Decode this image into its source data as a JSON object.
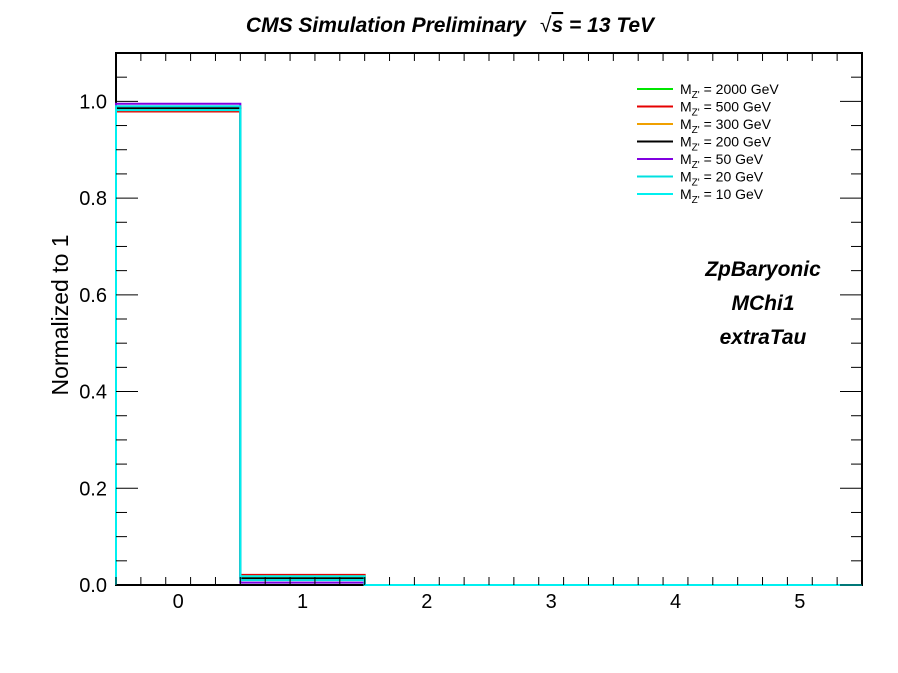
{
  "chart_data": {
    "type": "histogram-step",
    "title": "CMS Simulation Preliminary  √s = 13 TeV",
    "title_parts": {
      "prefix": "CMS Simulation Preliminary",
      "sqrt_symbol": "√",
      "s_var": "s",
      "suffix": " = 13 TeV"
    },
    "xlabel": "",
    "ylabel": "Normalized to 1",
    "xlim": [
      -0.5,
      5.5
    ],
    "ylim": [
      0,
      1.1
    ],
    "xticks": [
      0,
      1,
      2,
      3,
      4,
      5
    ],
    "xtick_labels": [
      "0",
      "1",
      "2",
      "3",
      "4",
      "5"
    ],
    "yticks": [
      0,
      0.2,
      0.4,
      0.6,
      0.8,
      1.0
    ],
    "ytick_labels": [
      "0.0",
      "0.2",
      "0.4",
      "0.6",
      "0.8",
      "1.0"
    ],
    "bin_edges": [
      -0.5,
      0.5,
      1.5,
      2.5,
      3.5,
      4.5,
      5.5
    ],
    "legend_position": "top-right",
    "series": [
      {
        "name_sub": "Z'",
        "name_rest": " = 2000 GeV",
        "color": "#00e600",
        "values": [
          0.985,
          0.015,
          0.0,
          0.0,
          0.0,
          0.0
        ]
      },
      {
        "name_sub": "Z'",
        "name_rest": " = 500 GeV",
        "color": "#e60000",
        "values": [
          0.979,
          0.021,
          0.0,
          0.0,
          0.0,
          0.0
        ]
      },
      {
        "name_sub": "Z'",
        "name_rest": " = 300 GeV",
        "color": "#f0a000",
        "values": [
          0.982,
          0.018,
          0.0,
          0.0,
          0.0,
          0.0
        ]
      },
      {
        "name_sub": "Z'",
        "name_rest": " = 200 GeV",
        "color": "#000000",
        "values": [
          0.986,
          0.014,
          0.0,
          0.0,
          0.0,
          0.0
        ]
      },
      {
        "name_sub": "Z'",
        "name_rest": " = 50 GeV",
        "color": "#8000e0",
        "values": [
          0.995,
          0.005,
          0.0,
          0.0,
          0.0,
          0.0
        ]
      },
      {
        "name_sub": "Z'",
        "name_rest": " = 20 GeV",
        "color": "#00e0e0",
        "values": [
          0.99,
          0.01,
          0.0,
          0.0,
          0.0,
          0.0
        ]
      },
      {
        "name_sub": "Z'",
        "name_rest": " = 10 GeV",
        "color": "#00f0f0",
        "values": [
          0.982,
          0.018,
          0.0,
          0.0,
          0.0,
          0.0
        ]
      }
    ],
    "legend_symbol": "M",
    "annotations": [
      "ZpBaryonic",
      "MChi1",
      "extraTau"
    ]
  }
}
